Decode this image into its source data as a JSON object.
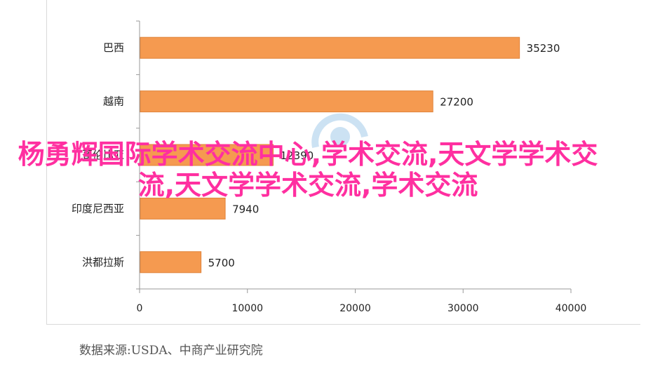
{
  "chart_data": {
    "type": "bar",
    "orientation": "horizontal",
    "categories": [
      "巴西",
      "越南",
      "哥伦比亚",
      "印度尼西亚",
      "洪都拉斯"
    ],
    "values": [
      35230,
      27200,
      12390,
      7940,
      5700
    ],
    "data_labels": [
      "35230",
      "27200",
      "12390",
      "7940",
      "5700"
    ],
    "xlim": [
      0,
      40000
    ],
    "x_ticks": [
      "0",
      "10000",
      "20000",
      "30000",
      "40000"
    ],
    "grid": false,
    "bar_color": "#f59a50"
  },
  "source_note": "数据来源:USDA、中商产业研究院",
  "overlay_text": "杨勇辉国际学术交流中心,学术交流,天文学学术交流,天文学学术交流,学术交流"
}
